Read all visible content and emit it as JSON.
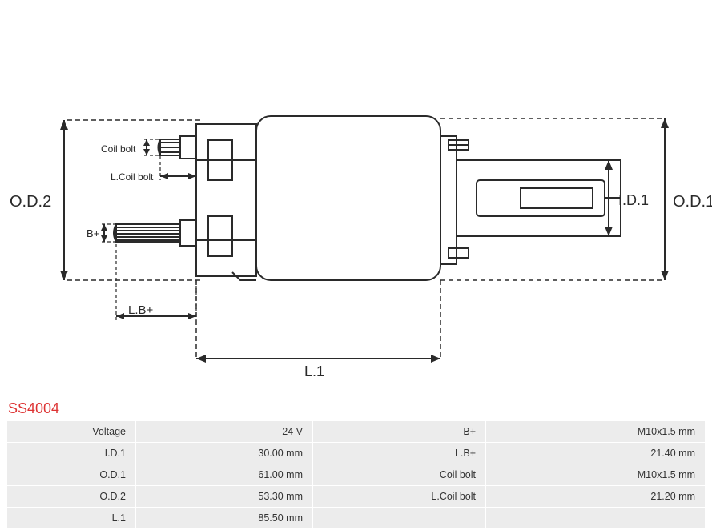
{
  "part_code": "SS4004",
  "diagram": {
    "labels": {
      "od2": "O.D.2",
      "od1": "O.D.1",
      "id1": "I.D.1",
      "coil_bolt": "Coil bolt",
      "l_coil_bolt": "L.Coil bolt",
      "b_plus": "B+",
      "l_b_plus": "L.B+",
      "l1": "L.1"
    },
    "stroke_color": "#2a2a2a",
    "dash": "6,4",
    "font_size_label": 18,
    "font_size_small": 13
  },
  "specs": [
    {
      "label_l": "Voltage",
      "val_l": "24 V",
      "label_r": "B+",
      "val_r": "M10x1.5 mm"
    },
    {
      "label_l": "I.D.1",
      "val_l": "30.00 mm",
      "label_r": "L.B+",
      "val_r": "21.40 mm"
    },
    {
      "label_l": "O.D.1",
      "val_l": "61.00 mm",
      "label_r": "Coil bolt",
      "val_r": "M10x1.5 mm"
    },
    {
      "label_l": "O.D.2",
      "val_l": "53.30 mm",
      "label_r": "L.Coil bolt",
      "val_r": "21.20 mm"
    },
    {
      "label_l": "L.1",
      "val_l": "85.50 mm",
      "label_r": "",
      "val_r": ""
    }
  ],
  "table_style": {
    "row_bg": "#ececec",
    "text_color": "#333333",
    "part_code_color": "#d33"
  }
}
